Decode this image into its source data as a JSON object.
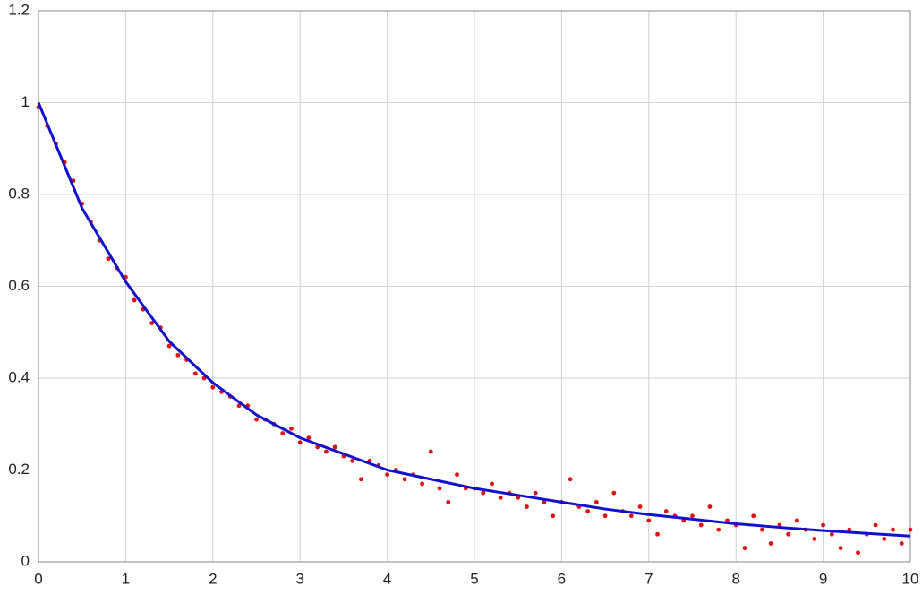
{
  "chart_data": {
    "type": "scatter",
    "grid": true,
    "xlim": [
      0,
      10
    ],
    "xticks": [
      0,
      1,
      2,
      3,
      4,
      5,
      6,
      7,
      8,
      9,
      10
    ],
    "ylim": [
      0,
      1.2
    ],
    "yticks": [
      0,
      0.2,
      0.4,
      0.6,
      0.8,
      1,
      1.2
    ],
    "series": [
      {
        "type": "scatter",
        "color": "#e01010",
        "x": [
          0,
          0.1,
          0.2,
          0.3,
          0.4,
          0.5,
          0.6,
          0.7,
          0.8,
          0.9,
          1,
          1.1,
          1.2,
          1.3,
          1.4,
          1.5,
          1.6,
          1.7,
          1.8,
          1.9,
          2,
          2.1,
          2.2,
          2.3,
          2.4,
          2.5,
          2.6,
          2.7,
          2.8,
          2.9,
          3,
          3.1,
          3.2,
          3.3,
          3.4,
          3.5,
          3.6,
          3.7,
          3.8,
          3.9,
          4,
          4.1,
          4.2,
          4.3,
          4.4,
          4.5,
          4.6,
          4.7,
          4.8,
          4.9,
          5,
          5.1,
          5.2,
          5.3,
          5.4,
          5.5,
          5.6,
          5.7,
          5.8,
          5.9,
          6,
          6.1,
          6.2,
          6.3,
          6.4,
          6.5,
          6.6,
          6.7,
          6.8,
          6.9,
          7,
          7.1,
          7.2,
          7.3,
          7.4,
          7.5,
          7.6,
          7.7,
          7.8,
          7.9,
          8,
          8.1,
          8.2,
          8.3,
          8.4,
          8.5,
          8.6,
          8.7,
          8.8,
          8.9,
          9,
          9.1,
          9.2,
          9.3,
          9.4,
          9.5,
          9.6,
          9.7,
          9.8,
          9.9,
          10
        ],
        "values": [
          0.99,
          0.95,
          0.91,
          0.87,
          0.83,
          0.78,
          0.74,
          0.7,
          0.66,
          0.64,
          0.62,
          0.57,
          0.55,
          0.52,
          0.51,
          0.47,
          0.45,
          0.44,
          0.41,
          0.4,
          0.38,
          0.37,
          0.36,
          0.34,
          0.34,
          0.31,
          0.31,
          0.3,
          0.28,
          0.29,
          0.26,
          0.27,
          0.25,
          0.24,
          0.25,
          0.23,
          0.22,
          0.18,
          0.22,
          0.21,
          0.19,
          0.2,
          0.18,
          0.19,
          0.17,
          0.24,
          0.16,
          0.13,
          0.19,
          0.16,
          0.16,
          0.15,
          0.17,
          0.14,
          0.15,
          0.14,
          0.12,
          0.15,
          0.13,
          0.1,
          0.13,
          0.18,
          0.12,
          0.11,
          0.13,
          0.1,
          0.15,
          0.11,
          0.1,
          0.12,
          0.09,
          0.06,
          0.11,
          0.1,
          0.09,
          0.1,
          0.08,
          0.12,
          0.07,
          0.09,
          0.08,
          0.03,
          0.1,
          0.07,
          0.04,
          0.08,
          0.06,
          0.09,
          0.07,
          0.05,
          0.08,
          0.06,
          0.03,
          0.07,
          0.02,
          0.06,
          0.08,
          0.05,
          0.07,
          0.04,
          0.07
        ]
      },
      {
        "type": "line",
        "color": "#1010d0",
        "x": [
          0,
          0.5,
          1,
          1.5,
          2,
          2.5,
          3,
          3.5,
          4,
          4.5,
          5,
          5.5,
          6,
          6.5,
          7,
          7.5,
          8,
          8.5,
          9,
          9.5,
          10
        ],
        "values": [
          1.0,
          0.77,
          0.61,
          0.48,
          0.39,
          0.32,
          0.27,
          0.235,
          0.2,
          0.18,
          0.16,
          0.145,
          0.13,
          0.115,
          0.103,
          0.093,
          0.083,
          0.075,
          0.068,
          0.062,
          0.056
        ]
      }
    ]
  }
}
